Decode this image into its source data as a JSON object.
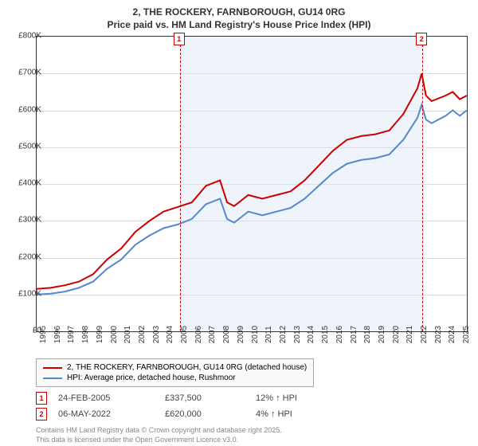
{
  "title_line1": "2, THE ROCKERY, FARNBOROUGH, GU14 0RG",
  "title_line2": "Price paid vs. HM Land Registry's House Price Index (HPI)",
  "chart": {
    "type": "line",
    "background_color": "#ffffff",
    "grid_color": "#dddddd",
    "border_color": "#333333",
    "highlight_color": "rgba(200,220,240,0.3)",
    "ylim": [
      0,
      800000
    ],
    "ytick_step": 100000,
    "yticks": [
      "£0",
      "£100K",
      "£200K",
      "£300K",
      "£400K",
      "£500K",
      "£600K",
      "£700K",
      "£800K"
    ],
    "xlim": [
      1995,
      2025.5
    ],
    "xticks": [
      "1995",
      "1996",
      "1997",
      "1998",
      "1999",
      "2000",
      "2001",
      "2002",
      "2003",
      "2004",
      "2005",
      "2006",
      "2007",
      "2008",
      "2009",
      "2010",
      "2011",
      "2012",
      "2013",
      "2014",
      "2015",
      "2016",
      "2017",
      "2018",
      "2019",
      "2020",
      "2021",
      "2022",
      "2023",
      "2024",
      "2025"
    ],
    "series": [
      {
        "name": "price_paid",
        "label": "2, THE ROCKERY, FARNBOROUGH, GU14 0RG (detached house)",
        "color": "#cc0000",
        "line_width": 2,
        "data": [
          [
            1995,
            115000
          ],
          [
            1996,
            118000
          ],
          [
            1997,
            125000
          ],
          [
            1998,
            135000
          ],
          [
            1999,
            155000
          ],
          [
            2000,
            195000
          ],
          [
            2001,
            225000
          ],
          [
            2002,
            270000
          ],
          [
            2003,
            300000
          ],
          [
            2004,
            325000
          ],
          [
            2005,
            337500
          ],
          [
            2006,
            350000
          ],
          [
            2007,
            395000
          ],
          [
            2008,
            410000
          ],
          [
            2008.5,
            350000
          ],
          [
            2009,
            340000
          ],
          [
            2010,
            370000
          ],
          [
            2011,
            360000
          ],
          [
            2012,
            370000
          ],
          [
            2013,
            380000
          ],
          [
            2014,
            410000
          ],
          [
            2015,
            450000
          ],
          [
            2016,
            490000
          ],
          [
            2017,
            520000
          ],
          [
            2018,
            530000
          ],
          [
            2019,
            535000
          ],
          [
            2020,
            545000
          ],
          [
            2021,
            590000
          ],
          [
            2022,
            660000
          ],
          [
            2022.3,
            700000
          ],
          [
            2022.6,
            640000
          ],
          [
            2023,
            625000
          ],
          [
            2024,
            640000
          ],
          [
            2024.5,
            650000
          ],
          [
            2025,
            630000
          ],
          [
            2025.5,
            640000
          ]
        ]
      },
      {
        "name": "hpi",
        "label": "HPI: Average price, detached house, Rushmoor",
        "color": "#5588cc",
        "line_width": 2,
        "data": [
          [
            1995,
            100000
          ],
          [
            1996,
            102000
          ],
          [
            1997,
            108000
          ],
          [
            1998,
            118000
          ],
          [
            1999,
            135000
          ],
          [
            2000,
            170000
          ],
          [
            2001,
            195000
          ],
          [
            2002,
            235000
          ],
          [
            2003,
            260000
          ],
          [
            2004,
            280000
          ],
          [
            2005,
            290000
          ],
          [
            2006,
            305000
          ],
          [
            2007,
            345000
          ],
          [
            2008,
            360000
          ],
          [
            2008.5,
            305000
          ],
          [
            2009,
            295000
          ],
          [
            2010,
            325000
          ],
          [
            2011,
            315000
          ],
          [
            2012,
            325000
          ],
          [
            2013,
            335000
          ],
          [
            2014,
            360000
          ],
          [
            2015,
            395000
          ],
          [
            2016,
            430000
          ],
          [
            2017,
            455000
          ],
          [
            2018,
            465000
          ],
          [
            2019,
            470000
          ],
          [
            2020,
            480000
          ],
          [
            2021,
            520000
          ],
          [
            2022,
            580000
          ],
          [
            2022.3,
            615000
          ],
          [
            2022.6,
            575000
          ],
          [
            2023,
            565000
          ],
          [
            2024,
            585000
          ],
          [
            2024.5,
            600000
          ],
          [
            2025,
            585000
          ],
          [
            2025.5,
            600000
          ]
        ]
      }
    ],
    "markers": [
      {
        "num": "1",
        "x": 2005.15
      },
      {
        "num": "2",
        "x": 2022.35
      }
    ],
    "highlight_band": [
      2005.15,
      2022.35
    ]
  },
  "data_rows": [
    {
      "num": "1",
      "date": "24-FEB-2005",
      "price": "£337,500",
      "pct": "12% ↑ HPI"
    },
    {
      "num": "2",
      "date": "06-MAY-2022",
      "price": "£620,000",
      "pct": "4% ↑ HPI"
    }
  ],
  "footer_line1": "Contains HM Land Registry data © Crown copyright and database right 2025.",
  "footer_line2": "This data is licensed under the Open Government Licence v3.0.",
  "font_sizes": {
    "title": 12,
    "axis": 10,
    "legend": 10,
    "datarow": 11,
    "footer": 9
  }
}
